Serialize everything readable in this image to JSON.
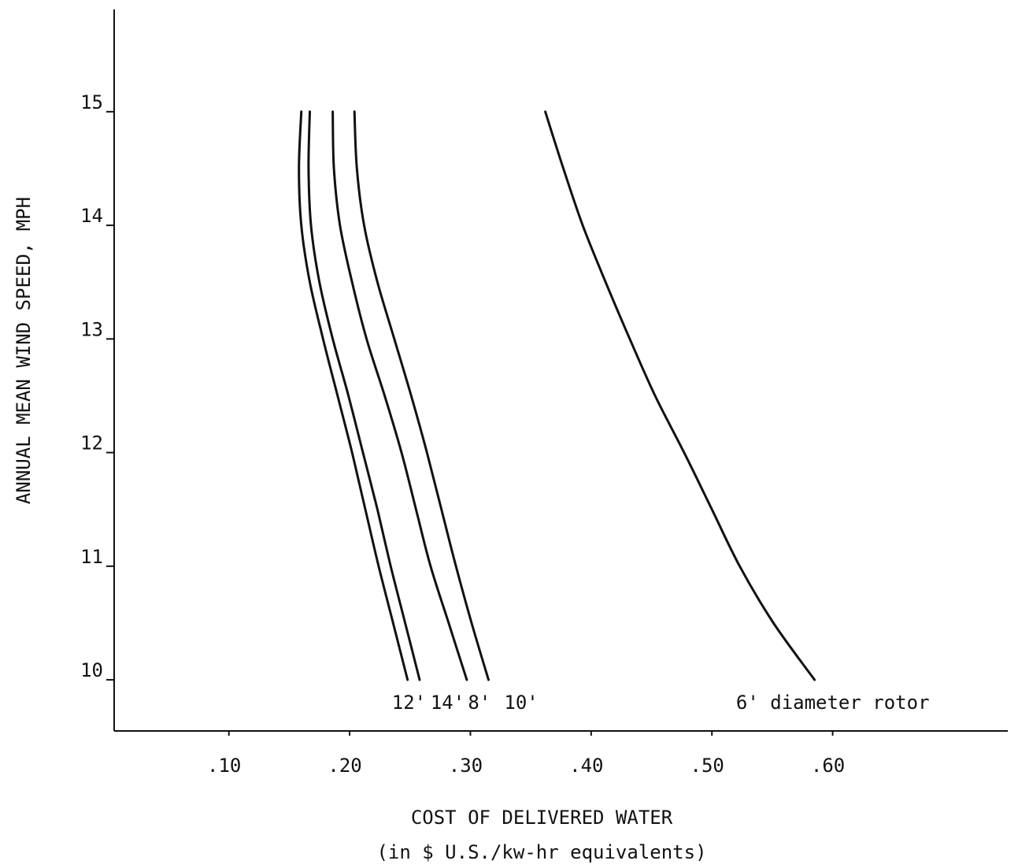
{
  "chart_data": {
    "type": "line",
    "title": "",
    "xlabel": "COST OF DELIVERED WATER",
    "xlabel_sub": "(in $ U.S./kw-hr equivalents)",
    "ylabel": "ANNUAL MEAN WIND SPEED, MPH",
    "xlim": [
      0.005,
      0.745
    ],
    "ylim": [
      9.55,
      15.9
    ],
    "x_ticks": [
      {
        "value": 0.1,
        "label": ".10"
      },
      {
        "value": 0.2,
        "label": ".20"
      },
      {
        "value": 0.3,
        "label": ".30"
      },
      {
        "value": 0.4,
        "label": ".40"
      },
      {
        "value": 0.5,
        "label": ".50"
      },
      {
        "value": 0.6,
        "label": ".60"
      }
    ],
    "y_ticks": [
      {
        "value": 10,
        "label": "10"
      },
      {
        "value": 11,
        "label": "11"
      },
      {
        "value": 12,
        "label": "12"
      },
      {
        "value": 13,
        "label": "13"
      },
      {
        "value": 14,
        "label": "14"
      },
      {
        "value": 15,
        "label": "15"
      }
    ],
    "grid": false,
    "legend": "direct labels at bottom of curves",
    "series": [
      {
        "name": "12'",
        "color": "#111111",
        "points": [
          [
            0.16,
            15.0
          ],
          [
            0.158,
            14.5
          ],
          [
            0.16,
            14.0
          ],
          [
            0.167,
            13.5
          ],
          [
            0.178,
            13.0
          ],
          [
            0.19,
            12.5
          ],
          [
            0.202,
            12.0
          ],
          [
            0.213,
            11.5
          ],
          [
            0.224,
            11.0
          ],
          [
            0.236,
            10.5
          ],
          [
            0.248,
            10.0
          ]
        ]
      },
      {
        "name": "14'",
        "color": "#111111",
        "points": [
          [
            0.167,
            15.0
          ],
          [
            0.166,
            14.5
          ],
          [
            0.168,
            14.0
          ],
          [
            0.175,
            13.5
          ],
          [
            0.186,
            13.0
          ],
          [
            0.199,
            12.5
          ],
          [
            0.211,
            12.0
          ],
          [
            0.223,
            11.5
          ],
          [
            0.234,
            11.0
          ],
          [
            0.246,
            10.5
          ],
          [
            0.258,
            10.0
          ]
        ]
      },
      {
        "name": "8'",
        "color": "#111111",
        "points": [
          [
            0.186,
            15.0
          ],
          [
            0.187,
            14.5
          ],
          [
            0.192,
            14.0
          ],
          [
            0.202,
            13.5
          ],
          [
            0.214,
            13.0
          ],
          [
            0.229,
            12.5
          ],
          [
            0.243,
            12.0
          ],
          [
            0.255,
            11.5
          ],
          [
            0.267,
            11.0
          ],
          [
            0.282,
            10.5
          ],
          [
            0.297,
            10.0
          ]
        ]
      },
      {
        "name": "10'",
        "color": "#111111",
        "points": [
          [
            0.204,
            15.0
          ],
          [
            0.206,
            14.5
          ],
          [
            0.212,
            14.0
          ],
          [
            0.223,
            13.5
          ],
          [
            0.237,
            13.0
          ],
          [
            0.251,
            12.5
          ],
          [
            0.264,
            12.0
          ],
          [
            0.276,
            11.5
          ],
          [
            0.288,
            11.0
          ],
          [
            0.301,
            10.5
          ],
          [
            0.315,
            10.0
          ]
        ]
      },
      {
        "name": "6' diameter rotor",
        "color": "#111111",
        "points": [
          [
            0.362,
            15.0
          ],
          [
            0.377,
            14.5
          ],
          [
            0.393,
            14.0
          ],
          [
            0.412,
            13.5
          ],
          [
            0.432,
            13.0
          ],
          [
            0.453,
            12.5
          ],
          [
            0.477,
            12.0
          ],
          [
            0.5,
            11.5
          ],
          [
            0.523,
            11.0
          ],
          [
            0.551,
            10.5
          ],
          [
            0.585,
            10.0
          ]
        ]
      }
    ],
    "series_label_positions": [
      {
        "name": "12'",
        "x": 0.235,
        "y": 9.8
      },
      {
        "name": "14'",
        "x": 0.267,
        "y": 9.8
      },
      {
        "name": "8'",
        "x": 0.298,
        "y": 9.8
      },
      {
        "name": "10'",
        "x": 0.328,
        "y": 9.8
      },
      {
        "name": "6' diameter rotor",
        "x": 0.52,
        "y": 9.8
      }
    ]
  }
}
